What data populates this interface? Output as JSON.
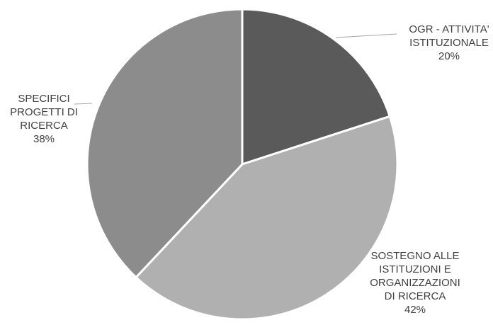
{
  "chart_data": {
    "type": "pie",
    "title": "",
    "slices": [
      {
        "label_lines": [
          "OGR - ATTIVITA'",
          "ISTITUZIONALE"
        ],
        "percent_label": "20%",
        "value": 20,
        "color": "#5a5a5a"
      },
      {
        "label_lines": [
          "SOSTEGNO ALLE",
          "ISTITUZIONI E",
          "ORGANIZZAZIONI",
          "DI RICERCA"
        ],
        "percent_label": "42%",
        "value": 42,
        "color": "#b0b0b0"
      },
      {
        "label_lines": [
          "SPECIFICI",
          "PROGETTI DI",
          "RICERCA"
        ],
        "percent_label": "38%",
        "value": 38,
        "color": "#8c8c8c"
      }
    ],
    "legend": "none",
    "start_angle": "12 o'clock",
    "direction": "clockwise"
  },
  "colors": {
    "slice_border": "#ffffff",
    "label_text": "#404040",
    "leader_line": "#a6a6a6"
  }
}
